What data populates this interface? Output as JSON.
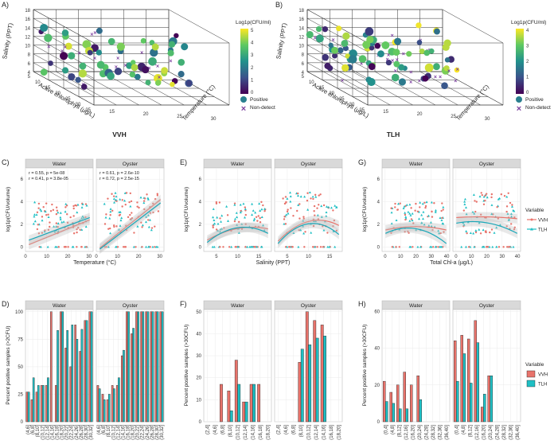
{
  "colors": {
    "vvh": "#e8736b",
    "tlh": "#1fbfc4",
    "tlh_line": "#1aa7b8",
    "nondetect": "#7b3f9e",
    "grid": "#ebebeb",
    "strip": "#d9d9d9"
  },
  "panels_3d": [
    {
      "letter": "A)",
      "title": "VVH",
      "legend_title": "Log1p(CFU/ml)",
      "legend_ticks": [
        "5",
        "4",
        "3",
        "2",
        "1",
        "0"
      ],
      "pos_label": "Positive",
      "non_label": "Non-detect",
      "y_axis": "Salinity (PPT)",
      "y_ticks": [
        "18",
        "16",
        "14",
        "12",
        "10",
        "8",
        "6",
        "4"
      ],
      "x_axis": "Active chlorophyll (µg/L)",
      "x_ticks": [
        "5",
        "10",
        "15",
        "20",
        "25",
        "30",
        "35"
      ],
      "z_axis": "Temperature (°C)",
      "z_ticks": [
        "15",
        "20",
        "25",
        "30"
      ]
    },
    {
      "letter": "B)",
      "title": "TLH",
      "legend_title": "Log1p(CFU/ml)",
      "legend_ticks": [
        "4",
        "3",
        "2",
        "1",
        "0"
      ],
      "pos_label": "Positive",
      "non_label": "Non-detect",
      "y_axis": "Salinity (PPT)",
      "y_ticks": [
        "18",
        "16",
        "14",
        "12",
        "10",
        "8",
        "6",
        "4"
      ],
      "x_axis": "Active chlorophyll (µg/L)",
      "x_ticks": [
        "5",
        "10",
        "15",
        "20",
        "25",
        "30",
        "35"
      ],
      "z_axis": "Temperature (°C)",
      "z_ticks": [
        "15",
        "20",
        "25",
        "30"
      ]
    }
  ],
  "legend_bottom": {
    "title": "Variable",
    "items": [
      "VVH",
      "TLH"
    ]
  },
  "chart_data": [
    {
      "type": "scatter",
      "panel": "C)",
      "facets": [
        "Water",
        "Oyster"
      ],
      "xlabel": "Temperature (°C)",
      "ylabel": "log1p(CFU/volume)",
      "xlim": [
        0,
        32
      ],
      "ylim": [
        -0.4,
        7
      ],
      "xticks": [
        0,
        10,
        20,
        30
      ],
      "yticks": [
        0,
        2,
        4,
        6
      ],
      "annotations": {
        "Water": [
          "r = 0.55, p = 5e-08",
          "r = 0.41, p = 3.8e-05"
        ],
        "Oyster": [
          "r = 0.61, p = 2.6e-10",
          "r = 0.72, p = 2.5e-15"
        ]
      },
      "fit": "linear",
      "fits": {
        "Water": {
          "VVH": [
            0.2,
            2.4
          ],
          "TLH": [
            0.6,
            2.6
          ]
        },
        "Oyster": {
          "VVH": [
            -0.1,
            4.2
          ],
          "TLH": [
            -0.2,
            3.9
          ]
        }
      }
    },
    {
      "type": "scatter",
      "panel": "E)",
      "facets": [
        "Water",
        "Oyster"
      ],
      "xlabel": "Salinity (PPT)",
      "ylabel": "log1p(CFU/volume)",
      "xlim": [
        2,
        18
      ],
      "ylim": [
        -0.4,
        7
      ],
      "xticks": [
        5,
        10,
        15
      ],
      "yticks": [
        0,
        2,
        4,
        6
      ],
      "fit": "quadratic",
      "fits": {
        "Water": {
          "VVH": [
            0.6,
            1.8,
            1.6
          ],
          "TLH": [
            0.4,
            2.0,
            1.2
          ]
        },
        "Oyster": {
          "VVH": [
            0.5,
            2.6,
            1.9
          ],
          "TLH": [
            0.3,
            2.5,
            1.1
          ]
        }
      }
    },
    {
      "type": "scatter",
      "panel": "G)",
      "facets": [
        "Water",
        "Oyster"
      ],
      "xlabel": "Total Chl-a (µg/L)",
      "ylabel": "log1p(CFU/volume)",
      "xlim": [
        -2,
        42
      ],
      "ylim": [
        -0.4,
        7
      ],
      "xticks": [
        0,
        10,
        20,
        30,
        40
      ],
      "yticks": [
        0,
        2,
        4,
        6
      ],
      "fit": "quadratic",
      "fits": {
        "Water": {
          "VVH": [
            1.5,
            1.9,
            1.5
          ],
          "TLH": [
            1.2,
            1.9,
            0.3
          ]
        },
        "Oyster": {
          "VVH": [
            2.6,
            2.7,
            2.5
          ],
          "TLH": [
            2.1,
            2.3,
            1.2
          ]
        }
      }
    },
    {
      "type": "bar",
      "panel": "D)",
      "facets": [
        "Water",
        "Oyster"
      ],
      "xlabel": "Temperature (°C)",
      "ylabel": "Percent positive samples (>2CFU)",
      "ylim": [
        0,
        102
      ],
      "yticks": [
        0,
        25,
        50,
        75,
        100
      ],
      "categories": [
        "(4,6]",
        "(6,8]",
        "(8,10]",
        "(10,12]",
        "(12,14]",
        "(14,16]",
        "(16,18]",
        "(18,20]",
        "(20,22]",
        "(22,24]",
        "(24,26]",
        "(26,28]",
        "(28,30]",
        "(30,32]"
      ],
      "series": [
        {
          "name": "VVH",
          "facet": "Water",
          "values": [
            27,
            20,
            27,
            33,
            33,
            100,
            33,
            100,
            67,
            50,
            88,
            64,
            92,
            100
          ]
        },
        {
          "name": "TLH",
          "facet": "Water",
          "values": [
            27,
            40,
            33,
            33,
            40,
            0,
            83,
            100,
            83,
            88,
            75,
            84,
            92,
            100
          ]
        },
        {
          "name": "VVH",
          "facet": "Oyster",
          "values": [
            33,
            25,
            20,
            33,
            33,
            60,
            100,
            80,
            100,
            100,
            100,
            100,
            100,
            100
          ]
        },
        {
          "name": "TLH",
          "facet": "Oyster",
          "values": [
            30,
            20,
            25,
            30,
            40,
            65,
            100,
            85,
            100,
            100,
            100,
            100,
            100,
            100
          ]
        }
      ]
    },
    {
      "type": "bar",
      "panel": "F)",
      "facets": [
        "Water",
        "Oyster"
      ],
      "xlabel": "Salinity (PPT)",
      "ylabel": "Percent positive samples (>30CFU)",
      "ylim": [
        0,
        51
      ],
      "yticks": [
        0,
        10,
        20,
        30,
        40,
        50
      ],
      "categories": [
        "(2,4]",
        "(4,6]",
        "(6,8]",
        "(8,10]",
        "(10,12]",
        "(12,14]",
        "(14,16]",
        "(16,18]",
        "(18,20]"
      ],
      "series": [
        {
          "name": "VVH",
          "facet": "Water",
          "values": [
            0,
            0,
            17,
            14,
            28,
            9,
            17,
            17,
            0
          ]
        },
        {
          "name": "TLH",
          "facet": "Water",
          "values": [
            0,
            0,
            0,
            5,
            17,
            9,
            17,
            0,
            0
          ]
        },
        {
          "name": "VVH",
          "facet": "Oyster",
          "values": [
            0,
            0,
            0,
            27,
            50,
            46,
            44,
            0,
            0
          ]
        },
        {
          "name": "TLH",
          "facet": "Oyster",
          "values": [
            0,
            0,
            0,
            33,
            35,
            38,
            39,
            0,
            0
          ]
        }
      ]
    },
    {
      "type": "bar",
      "panel": "H)",
      "facets": [
        "Water",
        "Oyster"
      ],
      "xlabel": "Total Chl-A (µg/L)",
      "ylabel": "Percent positive samples (>30CFU)",
      "ylim": [
        0,
        61
      ],
      "yticks": [
        0,
        20,
        40,
        60
      ],
      "categories": [
        "(0,4]",
        "(4,8]",
        "(8,12]",
        "(12,16]",
        "(16,20]",
        "(20,24]",
        "(24,28]",
        "(28,32]",
        "(32,36]",
        "(36,40]"
      ],
      "series": [
        {
          "name": "VVH",
          "facet": "Water",
          "values": [
            22,
            16,
            20,
            27,
            20,
            25,
            0,
            0,
            0,
            0
          ]
        },
        {
          "name": "TLH",
          "facet": "Water",
          "values": [
            11,
            10,
            7,
            7,
            0,
            12,
            0,
            0,
            0,
            0
          ]
        },
        {
          "name": "VVH",
          "facet": "Oyster",
          "values": [
            44,
            47,
            45,
            55,
            8,
            25,
            0,
            0,
            0,
            0
          ]
        },
        {
          "name": "TLH",
          "facet": "Oyster",
          "values": [
            22,
            37,
            21,
            43,
            15,
            25,
            0,
            0,
            0,
            0
          ]
        }
      ]
    }
  ]
}
